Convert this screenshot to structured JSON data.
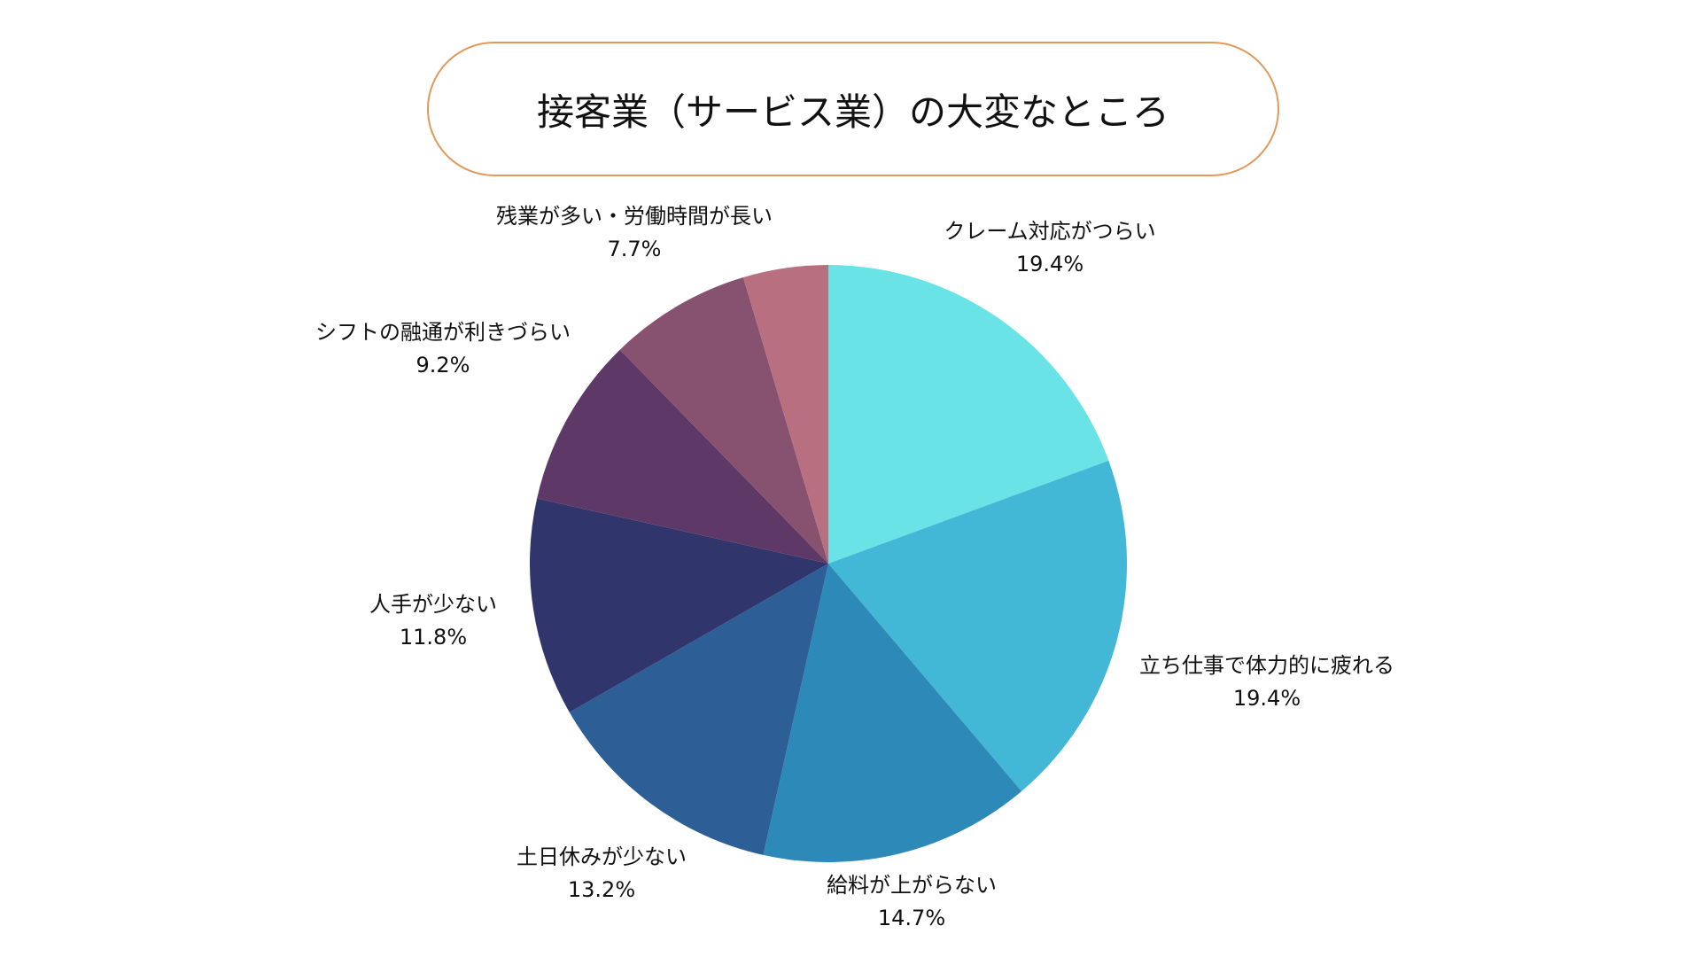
{
  "chart_data": {
    "type": "pie",
    "title": "接客業（サービス業）の大変なところ",
    "start": "top",
    "direction": "clockwise",
    "slices": [
      {
        "label": "クレーム対応がつらい",
        "value": 19.4,
        "value_label": "19.4%",
        "color": "#6ae3e6"
      },
      {
        "label": "立ち仕事で体力的に疲れる",
        "value": 19.4,
        "value_label": "19.4%",
        "color": "#42b7d6"
      },
      {
        "label": "給料が上がらない",
        "value": 14.7,
        "value_label": "14.7%",
        "color": "#2d8ab8"
      },
      {
        "label": "土日休みが少ない",
        "value": 13.2,
        "value_label": "13.2%",
        "color": "#2e5e96"
      },
      {
        "label": "人手が少ない",
        "value": 11.8,
        "value_label": "11.8%",
        "color": "#30356c"
      },
      {
        "label": "シフトの融通が利きづらい",
        "value": 9.2,
        "value_label": "9.2%",
        "color": "#5e3866"
      },
      {
        "label": "残業が多い・労働時間が長い",
        "value": 7.7,
        "value_label": "7.7%",
        "color": "#87526f"
      },
      {
        "label": "",
        "value": 4.6,
        "value_label": "",
        "color": "#b87080"
      }
    ],
    "legend": "none"
  }
}
